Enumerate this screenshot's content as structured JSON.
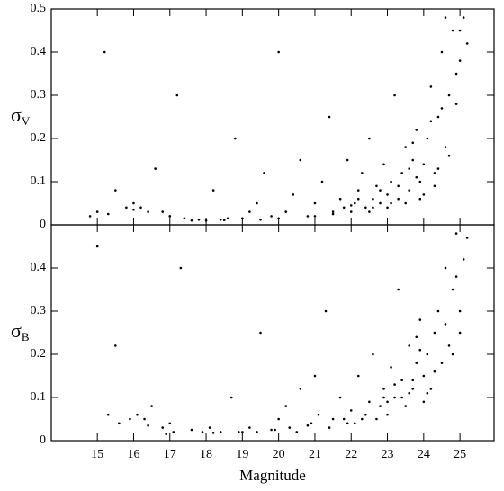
{
  "chart_data": [
    {
      "type": "scatter",
      "y_label": {
        "symbol": "σ",
        "subscript": "V"
      },
      "color": "#000000",
      "ylim": [
        0,
        0.5
      ],
      "yticks": [
        0,
        0.1,
        0.2,
        0.3,
        0.4,
        0.5
      ],
      "x": [
        14.8,
        15.0,
        15.2,
        15.5,
        15.8,
        16.0,
        16.2,
        16.4,
        16.6,
        16.8,
        17.0,
        17.2,
        17.4,
        17.6,
        17.8,
        18.0,
        18.2,
        18.4,
        18.6,
        18.8,
        19.0,
        19.2,
        19.4,
        19.6,
        19.8,
        20.0,
        20.2,
        20.4,
        20.6,
        20.8,
        21.0,
        21.2,
        21.4,
        21.5,
        21.7,
        21.9,
        22.0,
        22.1,
        22.2,
        22.3,
        22.4,
        22.5,
        22.6,
        22.7,
        22.8,
        22.9,
        23.0,
        23.1,
        23.2,
        23.3,
        23.4,
        23.5,
        23.6,
        23.7,
        23.8,
        23.9,
        24.0,
        24.1,
        24.2,
        24.3,
        24.4,
        24.5,
        24.6,
        24.7,
        24.8,
        24.9,
        25.0,
        25.1,
        25.2,
        24.6,
        23.0,
        23.5,
        24.0,
        22.5,
        21.0,
        20.0,
        24.3,
        24.7,
        23.8,
        22.8,
        23.3,
        23.9,
        24.4,
        22.0,
        21.5,
        19.5,
        18.5,
        17.0,
        16.0,
        15.3,
        24.9,
        24.2,
        23.6,
        23.1,
        22.6,
        22.2,
        21.8,
        24.5,
        23.7,
        25.0
      ],
      "y": [
        0.02,
        0.03,
        0.4,
        0.08,
        0.04,
        0.05,
        0.04,
        0.03,
        0.13,
        0.03,
        0.02,
        0.3,
        0.015,
        0.01,
        0.012,
        0.01,
        0.08,
        0.012,
        0.015,
        0.2,
        0.015,
        0.03,
        0.05,
        0.12,
        0.02,
        0.4,
        0.03,
        0.07,
        0.15,
        0.02,
        0.05,
        0.1,
        0.25,
        0.03,
        0.06,
        0.15,
        0.03,
        0.05,
        0.08,
        0.12,
        0.04,
        0.2,
        0.06,
        0.09,
        0.05,
        0.14,
        0.07,
        0.1,
        0.3,
        0.06,
        0.12,
        0.18,
        0.08,
        0.15,
        0.22,
        0.1,
        0.14,
        0.2,
        0.32,
        0.12,
        0.25,
        0.4,
        0.18,
        0.3,
        0.45,
        0.28,
        0.38,
        0.48,
        0.42,
        0.48,
        0.04,
        0.05,
        0.07,
        0.03,
        0.02,
        0.015,
        0.09,
        0.16,
        0.11,
        0.08,
        0.09,
        0.06,
        0.13,
        0.045,
        0.025,
        0.012,
        0.011,
        0.02,
        0.035,
        0.025,
        0.35,
        0.24,
        0.13,
        0.05,
        0.04,
        0.06,
        0.04,
        0.27,
        0.19,
        0.45
      ]
    },
    {
      "type": "scatter",
      "y_label": {
        "symbol": "σ",
        "subscript": "B"
      },
      "x_label": "Magnitude",
      "color": "#000000",
      "xlim": [
        13.73,
        25.94
      ],
      "xticks": [
        15,
        16,
        17,
        18,
        19,
        20,
        21,
        22,
        23,
        24,
        25
      ],
      "ylim": [
        0,
        0.5
      ],
      "yticks": [
        0,
        0.1,
        0.2,
        0.3,
        0.4
      ],
      "x": [
        15.0,
        15.3,
        15.6,
        15.9,
        16.1,
        16.3,
        16.5,
        16.8,
        17.0,
        17.3,
        17.6,
        17.9,
        18.1,
        18.4,
        18.7,
        19.0,
        19.2,
        19.5,
        19.8,
        20.0,
        20.3,
        20.6,
        20.9,
        21.1,
        21.3,
        21.5,
        21.7,
        21.9,
        22.0,
        22.2,
        22.3,
        22.5,
        22.6,
        22.8,
        22.9,
        23.0,
        23.1,
        23.2,
        23.3,
        23.4,
        23.5,
        23.6,
        23.7,
        23.8,
        23.9,
        24.0,
        24.1,
        24.2,
        24.3,
        24.4,
        24.5,
        24.6,
        24.7,
        24.8,
        24.9,
        25.0,
        25.1,
        25.2,
        23.4,
        23.7,
        24.0,
        22.7,
        22.1,
        21.4,
        20.5,
        19.4,
        18.2,
        17.1,
        16.4,
        24.3,
        23.9,
        23.2,
        24.6,
        24.8,
        23.6,
        22.4,
        21.8,
        20.8,
        19.9,
        18.9,
        15.5,
        16.9,
        24.1,
        23.0,
        22.9,
        24.9,
        25.0,
        21.0,
        20.2,
        23.8
      ],
      "y": [
        0.45,
        0.06,
        0.04,
        0.05,
        0.06,
        0.05,
        0.08,
        0.03,
        0.04,
        0.4,
        0.025,
        0.02,
        0.03,
        0.02,
        0.1,
        0.02,
        0.03,
        0.25,
        0.025,
        0.05,
        0.03,
        0.12,
        0.04,
        0.06,
        0.3,
        0.05,
        0.1,
        0.04,
        0.07,
        0.15,
        0.05,
        0.09,
        0.2,
        0.08,
        0.12,
        0.06,
        0.17,
        0.1,
        0.35,
        0.14,
        0.08,
        0.22,
        0.12,
        0.18,
        0.28,
        0.15,
        0.2,
        0.12,
        0.25,
        0.3,
        0.18,
        0.4,
        0.22,
        0.35,
        0.48,
        0.3,
        0.42,
        0.47,
        0.1,
        0.14,
        0.09,
        0.05,
        0.04,
        0.03,
        0.02,
        0.02,
        0.018,
        0.02,
        0.035,
        0.16,
        0.21,
        0.13,
        0.27,
        0.2,
        0.11,
        0.06,
        0.05,
        0.035,
        0.025,
        0.02,
        0.22,
        0.015,
        0.11,
        0.09,
        0.1,
        0.38,
        0.25,
        0.15,
        0.08,
        0.24
      ]
    }
  ]
}
